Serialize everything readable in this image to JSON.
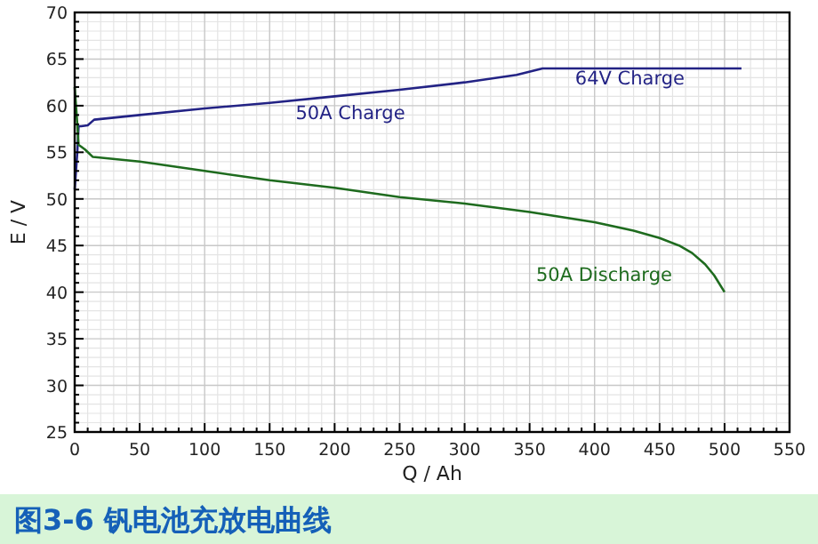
{
  "chart_data": {
    "type": "line",
    "xlabel": "Q / Ah",
    "ylabel": "E / V",
    "xlim": [
      0,
      550
    ],
    "xticks": [
      0,
      50,
      100,
      150,
      200,
      250,
      300,
      350,
      400,
      450,
      500,
      550
    ],
    "ylim": [
      25,
      70
    ],
    "yticks": [
      25,
      30,
      35,
      40,
      45,
      50,
      55,
      60,
      65,
      70
    ],
    "grid": true,
    "series": [
      {
        "name": "50A Charge",
        "color": "#232385",
        "x": [
          0,
          1,
          2,
          3,
          5,
          10,
          15,
          50,
          100,
          150,
          200,
          250,
          300,
          340,
          360,
          380,
          450,
          513
        ],
        "values": [
          51,
          53,
          55,
          57.8,
          57.8,
          57.9,
          58.5,
          59,
          59.7,
          60.3,
          61,
          61.7,
          62.5,
          63.3,
          64,
          64,
          64,
          64
        ]
      },
      {
        "name": "50A Discharge",
        "color": "#1e6b1e",
        "x": [
          0,
          1,
          2,
          3,
          5,
          8,
          14,
          50,
          100,
          150,
          200,
          250,
          300,
          350,
          400,
          430,
          450,
          465,
          475,
          485,
          492,
          500
        ],
        "values": [
          62,
          60,
          58,
          55.8,
          55.6,
          55.3,
          54.5,
          54,
          53,
          52,
          51.2,
          50.2,
          49.5,
          48.6,
          47.5,
          46.6,
          45.8,
          45,
          44.2,
          43,
          41.8,
          40
        ]
      }
    ],
    "annotations": [
      "64V Charge",
      "图3-6 钒电池充放电曲线"
    ]
  }
}
